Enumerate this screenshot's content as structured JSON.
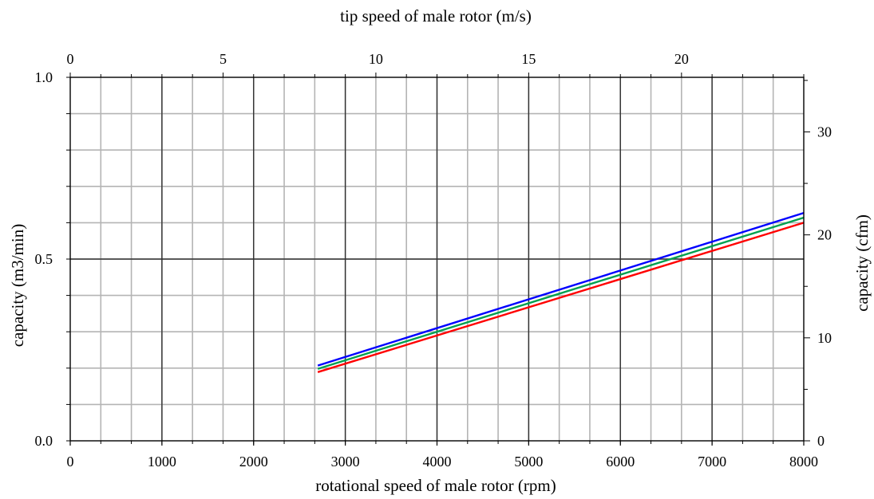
{
  "chart_data": {
    "type": "line",
    "xlabel": "rotational speed of male rotor (rpm)",
    "x2label": "tip speed of male rotor (m/s)",
    "ylabel": "capacity (m3/min)",
    "y2label": "capacity (cfm)",
    "xlim": [
      0,
      8000
    ],
    "ylim": [
      0,
      1.0
    ],
    "x2lim": [
      0,
      24
    ],
    "y2lim": [
      0,
      35.3
    ],
    "x_major_ticks": [
      0,
      1000,
      2000,
      3000,
      4000,
      5000,
      6000,
      7000,
      8000
    ],
    "x_tick_labels": [
      "0",
      "1000",
      "2000",
      "3000",
      "4000",
      "5000",
      "6000",
      "7000",
      "8000"
    ],
    "x_grid_step": 333.33,
    "x2_major_ticks": [
      0,
      5,
      10,
      15,
      20
    ],
    "x2_tick_labels": [
      "0",
      "5",
      "10",
      "15",
      "20"
    ],
    "x2_minor_step": 1,
    "y_major_ticks": [
      0.0,
      0.5,
      1.0
    ],
    "y_tick_labels": [
      "0.0",
      "0.5",
      "1.0"
    ],
    "y_grid_step": 0.1,
    "y2_major_ticks": [
      0,
      10,
      20,
      30
    ],
    "y2_tick_labels": [
      "0",
      "10",
      "20",
      "30"
    ],
    "y2_minor_step": 5,
    "grid": true,
    "series": [
      {
        "color": "#0000ff",
        "x": [
          2700,
          8000
        ],
        "y": [
          0.207,
          0.627
        ]
      },
      {
        "color": "#00a050",
        "x": [
          2700,
          8000
        ],
        "y": [
          0.198,
          0.614
        ]
      },
      {
        "color": "#ff0000",
        "x": [
          2700,
          8000
        ],
        "y": [
          0.189,
          0.6
        ]
      }
    ]
  }
}
